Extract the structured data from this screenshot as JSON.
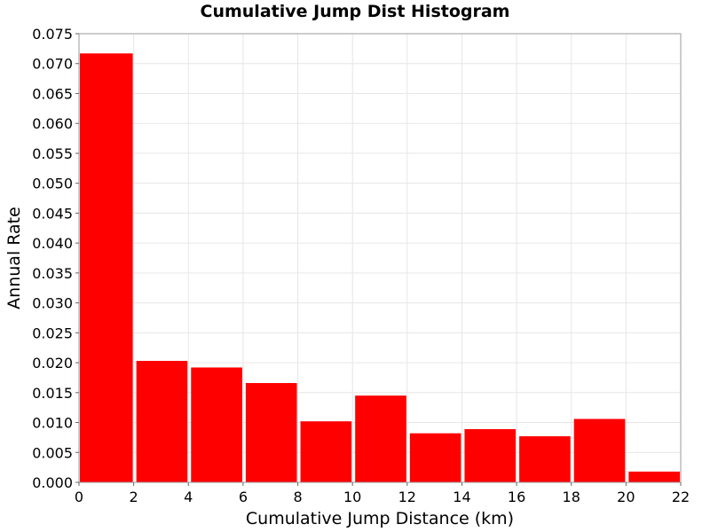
{
  "chart_data": {
    "type": "bar",
    "title": "Cumulative Jump Dist Histogram",
    "xlabel": "Cumulative Jump Distance (km)",
    "ylabel": "Annual Rate",
    "xlim": [
      0,
      22
    ],
    "ylim": [
      0,
      0.075
    ],
    "bin_width": 2,
    "bins": [
      {
        "x0": 0,
        "x1": 2,
        "value": 0.0717
      },
      {
        "x0": 2,
        "x1": 4,
        "value": 0.0203
      },
      {
        "x0": 4,
        "x1": 6,
        "value": 0.0192
      },
      {
        "x0": 6,
        "x1": 8,
        "value": 0.0166
      },
      {
        "x0": 8,
        "x1": 10,
        "value": 0.0102
      },
      {
        "x0": 10,
        "x1": 12,
        "value": 0.0145
      },
      {
        "x0": 12,
        "x1": 14,
        "value": 0.0082
      },
      {
        "x0": 14,
        "x1": 16,
        "value": 0.0089
      },
      {
        "x0": 16,
        "x1": 18,
        "value": 0.0077
      },
      {
        "x0": 18,
        "x1": 20,
        "value": 0.0106
      },
      {
        "x0": 20,
        "x1": 22,
        "value": 0.0018
      }
    ],
    "x_ticks": [
      "0",
      "2",
      "4",
      "6",
      "8",
      "10",
      "12",
      "14",
      "16",
      "18",
      "20",
      "22"
    ],
    "y_ticks": [
      "0.000",
      "0.005",
      "0.010",
      "0.015",
      "0.020",
      "0.025",
      "0.030",
      "0.035",
      "0.040",
      "0.045",
      "0.050",
      "0.055",
      "0.060",
      "0.065",
      "0.070",
      "0.075"
    ],
    "grid": true,
    "bar_color": "#ff0000",
    "grid_color": "#e6e6e6",
    "frame_color": "#999999"
  }
}
